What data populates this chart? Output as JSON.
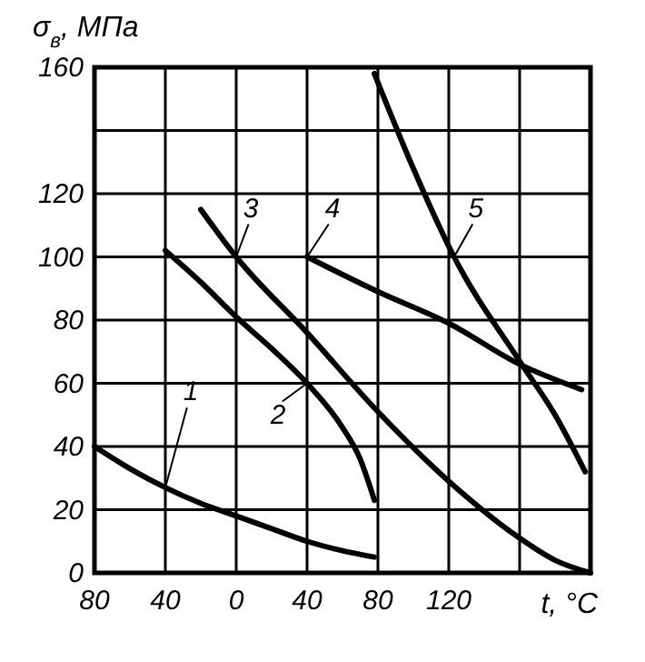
{
  "chart_data": {
    "type": "line",
    "ylabel": "σ$_{в}$, МПа",
    "xlabel": "t, °C",
    "xlim": [
      -80,
      200
    ],
    "ylim": [
      0,
      160
    ],
    "xticks": [
      {
        "value": -80,
        "label": "80"
      },
      {
        "value": -40,
        "label": "40"
      },
      0,
      40,
      80,
      120,
      {
        "value": 160,
        "label": null
      },
      {
        "value": 200,
        "label": null
      }
    ],
    "yticks": [
      0,
      20,
      40,
      60,
      80,
      100,
      120,
      {
        "value": 140,
        "label": null
      },
      160
    ],
    "grid": true,
    "line_style": "solid",
    "marker": "none",
    "series": [
      {
        "name": "1",
        "color": "#000000",
        "x": [
          -80,
          -60,
          -40,
          -20,
          0,
          20,
          40,
          60,
          78
        ],
        "values": [
          40,
          33,
          27,
          22,
          18,
          14,
          10,
          7,
          5
        ]
      },
      {
        "name": "2",
        "color": "#000000",
        "x": [
          -40,
          -20,
          0,
          20,
          40,
          60,
          70,
          78
        ],
        "values": [
          102,
          92,
          81,
          71,
          60,
          46,
          36,
          23
        ]
      },
      {
        "name": "3",
        "color": "#000000",
        "x": [
          -20,
          0,
          40,
          80,
          120,
          160,
          180,
          200
        ],
        "values": [
          115,
          100,
          76,
          51,
          29,
          11,
          4,
          0
        ]
      },
      {
        "name": "4",
        "color": "#000000",
        "x": [
          40,
          80,
          120,
          160,
          195
        ],
        "values": [
          100,
          89,
          79,
          66,
          58
        ]
      },
      {
        "name": "5",
        "color": "#000000",
        "x": [
          78,
          100,
          123,
          160,
          180,
          197
        ],
        "values": [
          158,
          128,
          100,
          67,
          50,
          32
        ]
      }
    ]
  }
}
